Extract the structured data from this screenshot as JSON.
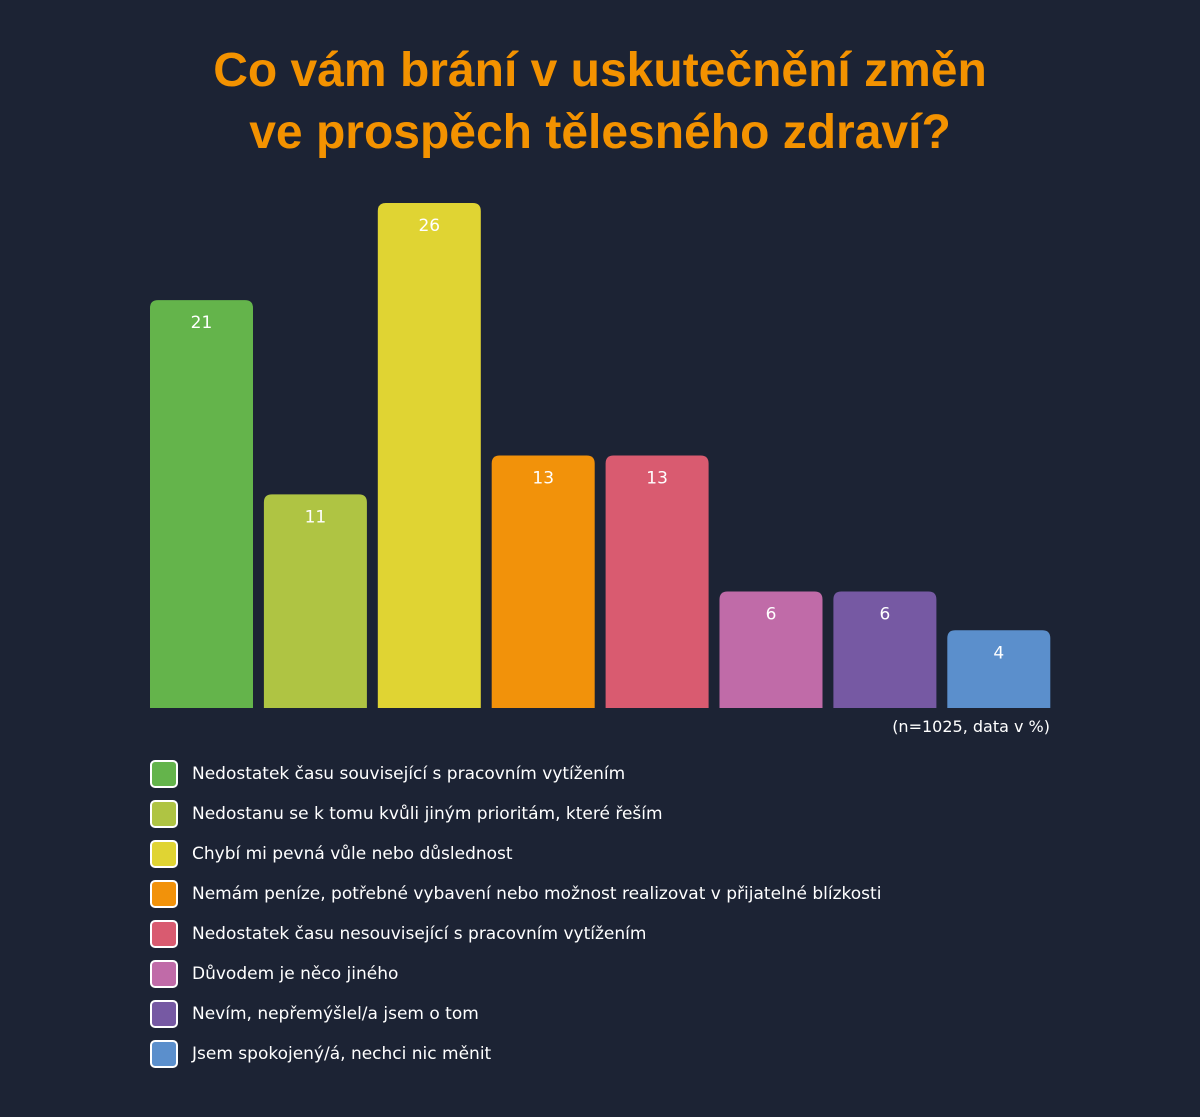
{
  "chart_data": {
    "type": "bar",
    "title_lines": [
      "Co vám brání v uskutečnění změn",
      "ve prospěch tělesného zdraví?"
    ],
    "note": "(n=1025, data v %)",
    "categories": [
      "Nedostatek času související s pracovním vytížením",
      "Nedostanu se k tomu kvůli jiným prioritám, které řeším",
      "Chybí mi pevná vůle nebo důslednost",
      "Nemám peníze, potřebné vybavení nebo možnost realizovat v přijatelné blízkosti",
      "Nedostatek času nesouvisející s pracovním vytížením",
      "Důvodem je něco jiného",
      "Nevím, nepřemýšlel/a jsem o tom",
      "Jsem spokojený/á, nechci nic měnit"
    ],
    "values": [
      21,
      11,
      26,
      13,
      13,
      6,
      6,
      4
    ],
    "colors": [
      "#64b44b",
      "#afc443",
      "#e0d433",
      "#f2920a",
      "#d95b70",
      "#c06ba8",
      "#7659a3",
      "#5b8fcc"
    ],
    "unit": "%",
    "legend_position": "bottom",
    "grid": false,
    "ylim": [
      0,
      26
    ]
  }
}
